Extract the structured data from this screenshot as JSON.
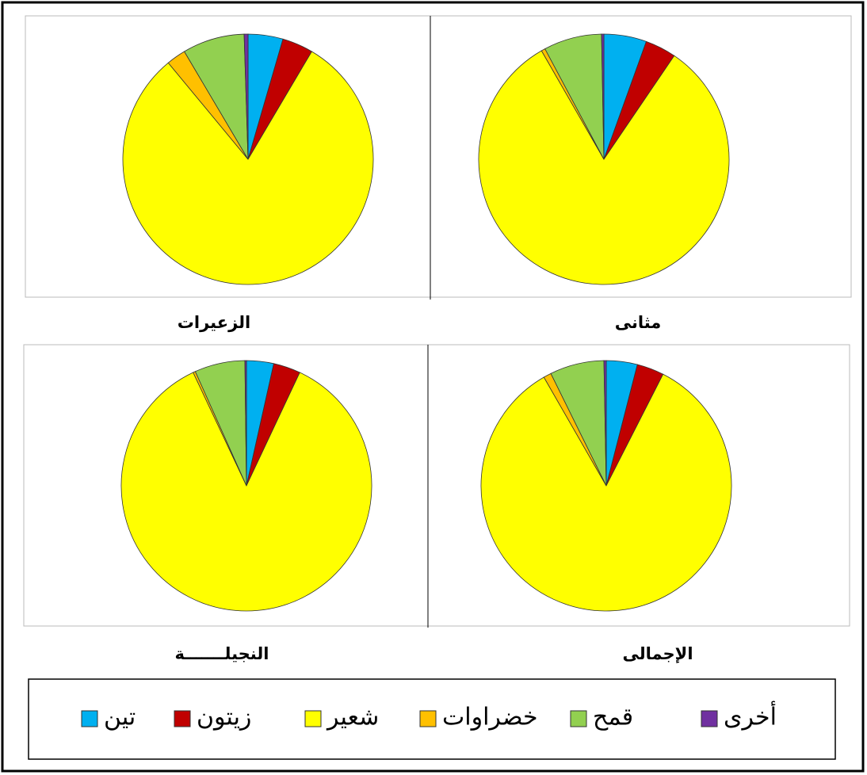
{
  "chart_data": [
    {
      "type": "pie",
      "title": "الزعيرات",
      "values": [
        4.5,
        4,
        80.5,
        2.5,
        8,
        0.5
      ]
    },
    {
      "type": "pie",
      "title": "مثانى",
      "values": [
        5.5,
        4,
        82.2,
        0.5,
        7.5,
        0.3
      ]
    },
    {
      "type": "pie",
      "title": "النجيلـــــــة",
      "values": [
        3.5,
        3.5,
        86,
        0.3,
        6.5,
        0.2
      ]
    },
    {
      "type": "pie",
      "title": "الإجمالى",
      "values": [
        4,
        3.5,
        84.2,
        1,
        7,
        0.3
      ]
    }
  ],
  "legend": {
    "categories": [
      "تين",
      "زيتون",
      "شعير",
      "خضراوات",
      "قمح",
      "أخرى"
    ],
    "colors": [
      "#00b0f0",
      "#c00000",
      "#ffff00",
      "#ffc000",
      "#92d050",
      "#7030a0"
    ]
  }
}
